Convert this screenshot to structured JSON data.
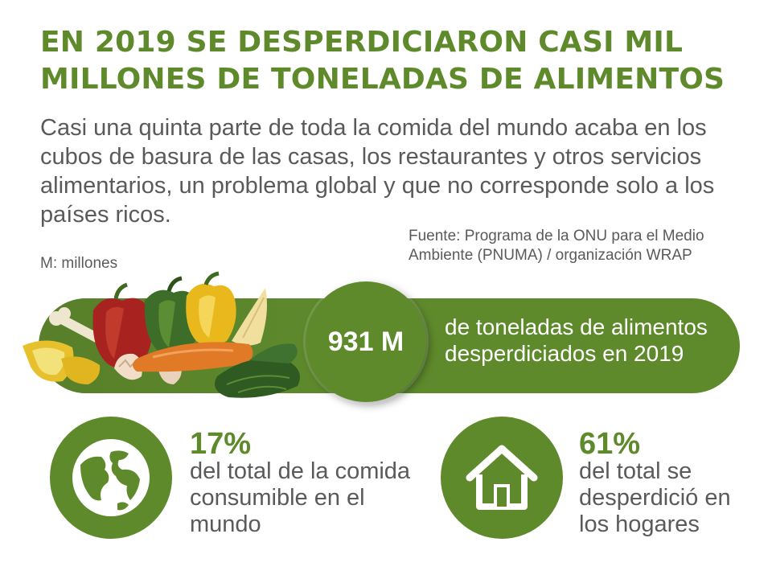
{
  "headline": {
    "line1": "EN 2019 SE DESPERDICIARON CASI MIL",
    "line2": "MILLONES DE TONELADAS DE ALIMENTOS"
  },
  "subtitle": {
    "line1": "Casi una quinta parte de toda la comida del mundo acaba en los",
    "line2": "cubos de basura de las casas, los restaurantes y otros servicios",
    "line3": "alimentarios, un problema global y que no corresponde solo a los",
    "line4": "países ricos."
  },
  "source": {
    "line1": "Fuente: Programa de la ONU para el Medio",
    "line2": "Ambiente (PNUMA) / organización WRAP"
  },
  "unit_note": "M: millones",
  "banner": {
    "value": "931 M",
    "line1": "de toneladas de alimentos",
    "line2": "desperdiciados en 2019"
  },
  "stats": [
    {
      "icon": "globe-icon",
      "value": "17%",
      "line1": "del total de la comida",
      "line2": "consumible en el",
      "line3": "mundo"
    },
    {
      "icon": "house-icon",
      "value": "61%",
      "line1": "del total se",
      "line2": "desperdició en",
      "line3": "los hogares"
    }
  ],
  "colors": {
    "brand_green": "#5e8a2c",
    "text_gray": "#5a5a5a",
    "white": "#ffffff"
  }
}
